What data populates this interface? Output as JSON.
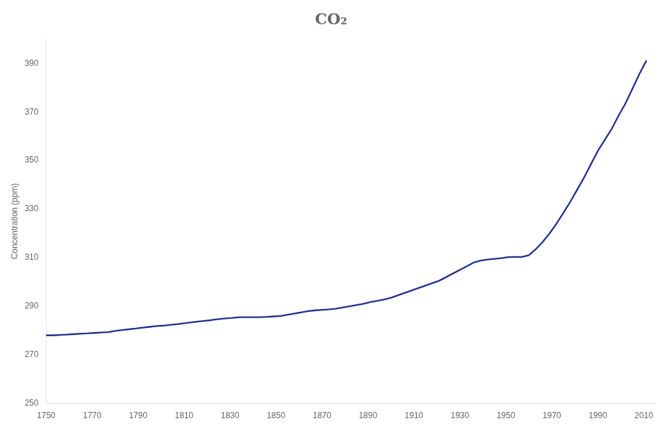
{
  "chart_data": {
    "type": "line",
    "title": "CO₂",
    "ylabel": "Concentration (ppm)",
    "x": [
      1750,
      1753,
      1756,
      1759,
      1762,
      1765,
      1768,
      1771,
      1774,
      1777,
      1780,
      1783,
      1786,
      1789,
      1792,
      1795,
      1798,
      1801,
      1804,
      1807,
      1810,
      1813,
      1816,
      1819,
      1822,
      1825,
      1828,
      1831,
      1834,
      1837,
      1840,
      1843,
      1846,
      1849,
      1852,
      1855,
      1858,
      1861,
      1864,
      1867,
      1870,
      1873,
      1876,
      1879,
      1882,
      1885,
      1888,
      1891,
      1894,
      1897,
      1900,
      1903,
      1906,
      1909,
      1912,
      1915,
      1918,
      1921,
      1924,
      1927,
      1930,
      1933,
      1936,
      1939,
      1942,
      1945,
      1948,
      1951,
      1954,
      1957,
      1960,
      1963,
      1966,
      1969,
      1972,
      1975,
      1978,
      1981,
      1984,
      1987,
      1990,
      1993,
      1996,
      1999,
      2002,
      2005,
      2008,
      2011
    ],
    "values": [
      278.0,
      278.0,
      278.2,
      278.3,
      278.5,
      278.7,
      278.8,
      279.0,
      279.2,
      279.3,
      279.8,
      280.2,
      280.5,
      280.8,
      281.2,
      281.5,
      281.8,
      282.0,
      282.3,
      282.6,
      283.0,
      283.3,
      283.7,
      284.0,
      284.3,
      284.7,
      285.0,
      285.2,
      285.5,
      285.5,
      285.5,
      285.5,
      285.6,
      285.8,
      286.0,
      286.5,
      287.0,
      287.5,
      288.0,
      288.3,
      288.5,
      288.7,
      289.0,
      289.5,
      290.0,
      290.5,
      291.0,
      291.7,
      292.2,
      292.8,
      293.5,
      294.5,
      295.5,
      296.5,
      297.5,
      298.5,
      299.5,
      300.5,
      302.0,
      303.5,
      305.0,
      306.5,
      308.0,
      308.8,
      309.2,
      309.5,
      309.8,
      310.2,
      310.3,
      310.3,
      311.0,
      313.5,
      316.5,
      320.0,
      324.0,
      328.5,
      333.0,
      338.0,
      343.0,
      348.5,
      354.0,
      358.5,
      363.0,
      368.5,
      373.5,
      379.5,
      385.5,
      391.0
    ],
    "color": "#1f2f8c",
    "xlim": [
      1750,
      2015
    ],
    "ylim": [
      250,
      400
    ],
    "xticks": [
      1750,
      1770,
      1790,
      1810,
      1830,
      1850,
      1870,
      1890,
      1910,
      1930,
      1950,
      1970,
      1990,
      2010
    ],
    "yticks": [
      250,
      270,
      290,
      310,
      330,
      350,
      370,
      390
    ],
    "grid": false
  }
}
